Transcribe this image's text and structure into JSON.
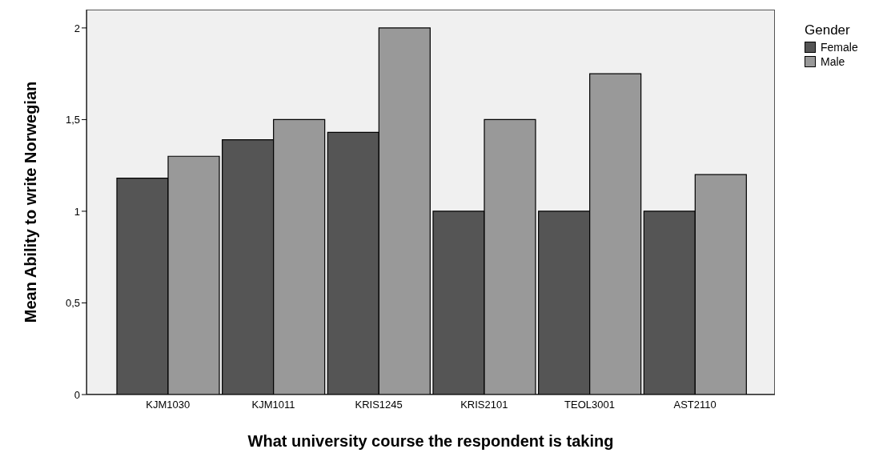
{
  "chart_data": {
    "type": "bar",
    "xlabel": "What university course the respondent is taking",
    "ylabel": "Mean Ability to write Norwegian",
    "legend_title": "Gender",
    "categories": [
      "KJM1030",
      "KJM1011",
      "KRIS1245",
      "KRIS2101",
      "TEOL3001",
      "AST2110"
    ],
    "series": [
      {
        "name": "Female",
        "color": "#555555",
        "values": [
          1.18,
          1.39,
          1.43,
          1.0,
          1.0,
          1.0
        ]
      },
      {
        "name": "Male",
        "color": "#999999",
        "values": [
          1.3,
          1.5,
          2.0,
          1.5,
          1.75,
          1.2
        ]
      }
    ],
    "ylim": [
      0,
      2.1
    ],
    "yticks": [
      0,
      {
        "value": 0.5,
        "label": "0,5"
      },
      1,
      {
        "value": 1.5,
        "label": "1,5"
      },
      2
    ],
    "legend": "top right"
  }
}
